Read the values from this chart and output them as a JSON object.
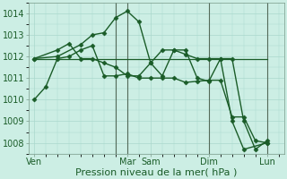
{
  "background_color": "#cceee4",
  "grid_color": "#aad8cc",
  "line_color": "#1a5c28",
  "separator_color": "#4a7a5a",
  "title": "Pression niveau de la mer( hPa )",
  "ylim": [
    1007.5,
    1014.5
  ],
  "yticks": [
    1008,
    1009,
    1010,
    1011,
    1012,
    1013,
    1014
  ],
  "xtick_labels": [
    "Ven",
    "Mar",
    "Sam",
    "Dim",
    "Lun"
  ],
  "xtick_positions": [
    0,
    8,
    10,
    15,
    20
  ],
  "xlim": [
    -0.5,
    21.5
  ],
  "series": [
    {
      "x": [
        0,
        1,
        2,
        3,
        4,
        5,
        6,
        7,
        8,
        9,
        10,
        11,
        12,
        13,
        14,
        15,
        16,
        17,
        18,
        19,
        20
      ],
      "y": [
        1010.0,
        1010.6,
        1011.9,
        1012.0,
        1012.3,
        1012.5,
        1011.1,
        1011.1,
        1011.2,
        1011.0,
        1011.0,
        1011.0,
        1011.0,
        1010.8,
        1010.85,
        1010.9,
        1010.9,
        1009.2,
        1009.2,
        1008.1,
        1008.0
      ],
      "marker": "D",
      "markersize": 2.5,
      "linewidth": 1.0
    },
    {
      "x": [
        0,
        2,
        4,
        5,
        6,
        7,
        8,
        9,
        10,
        11,
        12,
        13,
        14,
        15,
        16,
        17,
        18,
        19,
        20
      ],
      "y": [
        1011.9,
        1012.0,
        1012.55,
        1013.0,
        1013.1,
        1013.8,
        1014.1,
        1013.6,
        1011.7,
        1011.1,
        1012.3,
        1012.3,
        1011.0,
        1010.85,
        1011.9,
        1011.9,
        1009.0,
        1007.7,
        1008.1
      ],
      "marker": "D",
      "markersize": 2.5,
      "linewidth": 1.0
    },
    {
      "x": [
        0,
        2,
        3,
        4,
        5,
        6,
        7,
        8,
        9,
        10,
        11,
        12,
        13,
        14,
        15,
        16,
        17,
        18,
        20
      ],
      "y": [
        1011.9,
        1012.3,
        1012.6,
        1011.9,
        1011.9,
        1011.7,
        1011.5,
        1011.1,
        1011.1,
        1011.7,
        1012.3,
        1012.3,
        1012.1,
        1011.9,
        1011.9,
        1011.9,
        1009.0,
        1007.7,
        1008.0
      ],
      "marker": "D",
      "markersize": 2.5,
      "linewidth": 1.0
    },
    {
      "x": [
        0,
        20
      ],
      "y": [
        1011.9,
        1011.9
      ],
      "marker": null,
      "markersize": 0,
      "linewidth": 0.9
    }
  ],
  "vline_positions": [
    7,
    8,
    15,
    20
  ],
  "vline_color": "#556b5a",
  "title_fontsize": 8,
  "tick_fontsize": 7
}
